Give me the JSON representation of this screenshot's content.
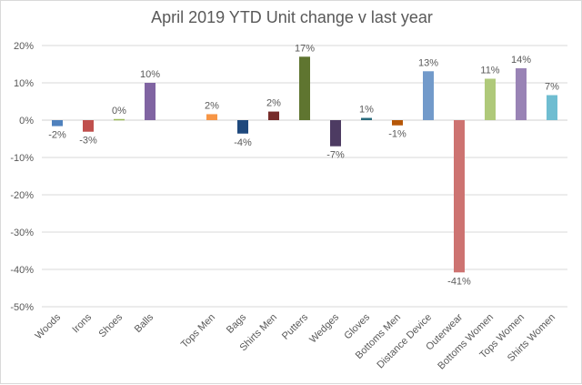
{
  "chart_data": {
    "type": "bar",
    "title": "April 2019 YTD Unit change v last year",
    "xlabel": "",
    "ylabel": "",
    "ylim": [
      -50,
      20
    ],
    "yticks": [
      "20%",
      "10%",
      "0%",
      "-10%",
      "-20%",
      "-30%",
      "-40%",
      "-50%"
    ],
    "grid": true,
    "categories": [
      "Woods",
      "Irons",
      "Shoes",
      "Balls",
      "",
      "Tops Men",
      "Bags",
      "Shirts Men",
      "Putters",
      "Wedges",
      "Gloves",
      "Bottoms Men",
      "Distance Device",
      "Outerwear",
      "Bottoms Women",
      "Tops Women",
      "Shirts Women"
    ],
    "values": [
      -1.6,
      -3.1,
      0.3,
      10,
      null,
      1.6,
      -3.6,
      2.3,
      17,
      -7,
      0.6,
      -1.4,
      13.1,
      -40.8,
      11.1,
      13.9,
      6.7
    ],
    "data_labels": [
      "-2%",
      "-3%",
      "0%",
      "10%",
      "",
      "2%",
      "-4%",
      "2%",
      "17%",
      "-7%",
      "1%",
      "-1%",
      "13%",
      "-41%",
      "11%",
      "14%",
      "7%"
    ],
    "colors": [
      "#4f81bd",
      "#c0504d",
      "#9bbb59",
      "#8064a2",
      "",
      "#f79646",
      "#1f497d",
      "#772c2a",
      "#5f7530",
      "#4d3b62",
      "#276a7c",
      "#b65708",
      "#729aca",
      "#cd7371",
      "#afc97a",
      "#9983b5",
      "#6fbdd1"
    ]
  }
}
